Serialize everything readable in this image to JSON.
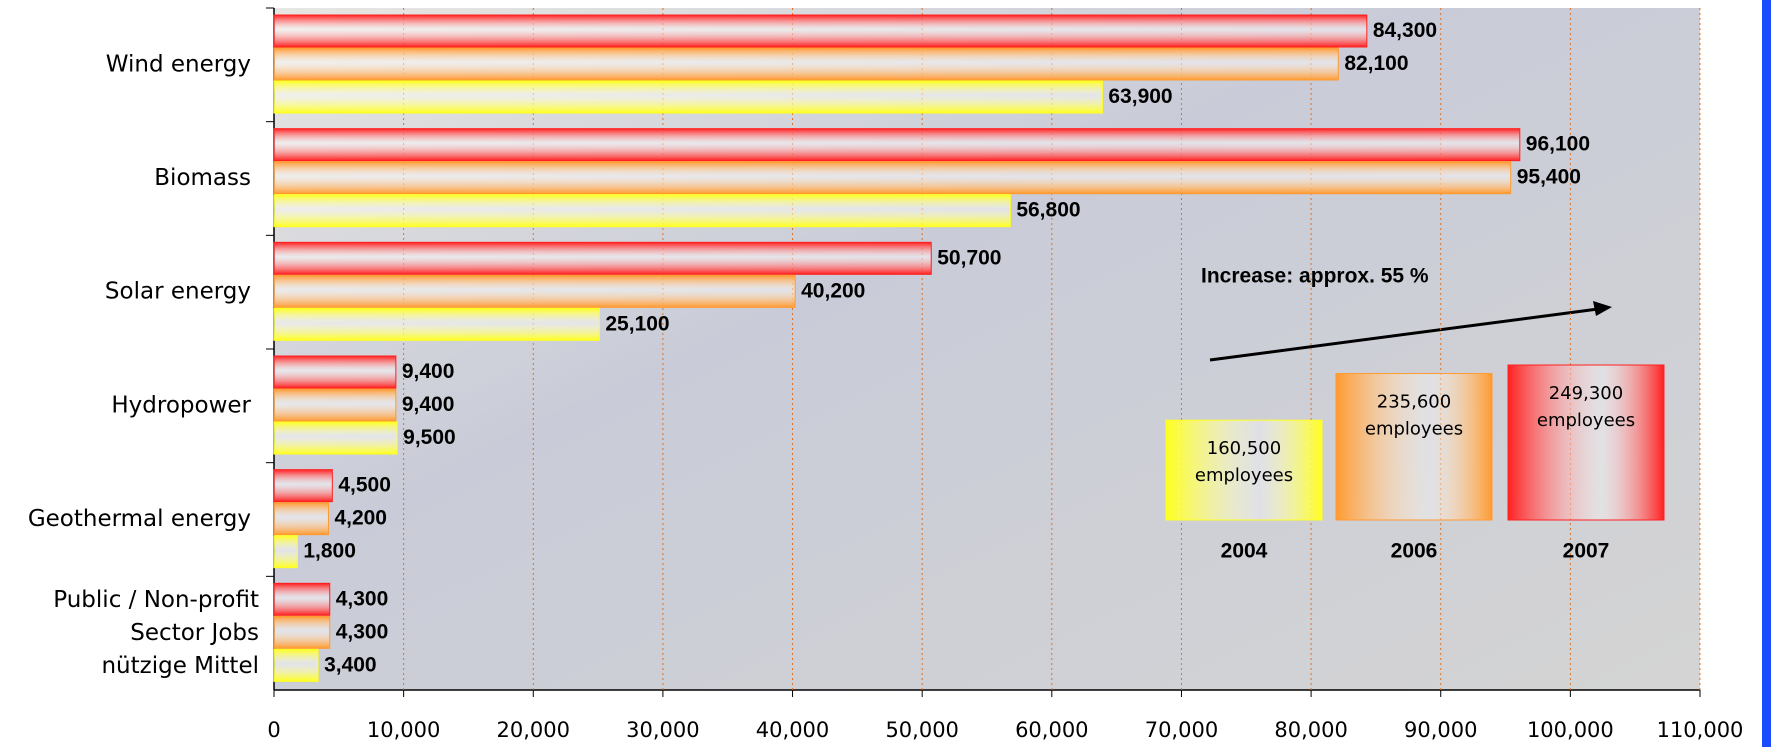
{
  "chart_data": {
    "type": "bar",
    "orientation": "horizontal",
    "categories": [
      "Wind energy",
      "Biomass",
      "Solar energy",
      "Hydropower",
      "Geothermal energy",
      "Public / Non-profit\nSector Jobs\nnützige Mittel"
    ],
    "series": [
      {
        "name": "2007",
        "color": "#ff2020",
        "values": [
          84300,
          96100,
          50700,
          9400,
          4500,
          4300
        ],
        "value_labels": [
          "84,300",
          "96,100",
          "50,700",
          "9,400",
          "4,500",
          "4,300"
        ],
        "total": 249300,
        "total_label": "249,300"
      },
      {
        "name": "2006",
        "color": "#ff9a30",
        "values": [
          82100,
          95400,
          40200,
          9400,
          4200,
          4300
        ],
        "value_labels": [
          "82,100",
          "95,400",
          "40,200",
          "9,400",
          "4,200",
          "4,300"
        ],
        "total": 235600,
        "total_label": "235,600"
      },
      {
        "name": "2004",
        "color": "#ffff20",
        "values": [
          63900,
          56800,
          25100,
          9500,
          1800,
          3400
        ],
        "value_labels": [
          "63,900",
          "56,800",
          "25,100",
          "9,500",
          "1,800",
          "3,400"
        ],
        "total": 160500,
        "total_label": "160,500"
      }
    ],
    "total_unit": "employees",
    "annotation": "Increase: approx. 55 %",
    "xlim": [
      0,
      110000
    ],
    "xticks": [
      0,
      {
        "value": 10000,
        "label": "10,000"
      },
      {
        "value": 20000,
        "label": "20,000"
      },
      {
        "value": 30000,
        "label": "30,000"
      },
      {
        "value": 40000,
        "label": "40,000"
      },
      {
        "value": 50000,
        "label": "50,000"
      },
      {
        "value": 60000,
        "label": "60,000"
      },
      {
        "value": 70000,
        "label": "70,000"
      },
      {
        "value": 80000,
        "label": "80,000"
      },
      {
        "value": 90000,
        "label": "90,000"
      },
      {
        "value": 100000,
        "label": "100,000"
      },
      {
        "value": 110000,
        "label": "110,000"
      }
    ],
    "grid": true
  }
}
